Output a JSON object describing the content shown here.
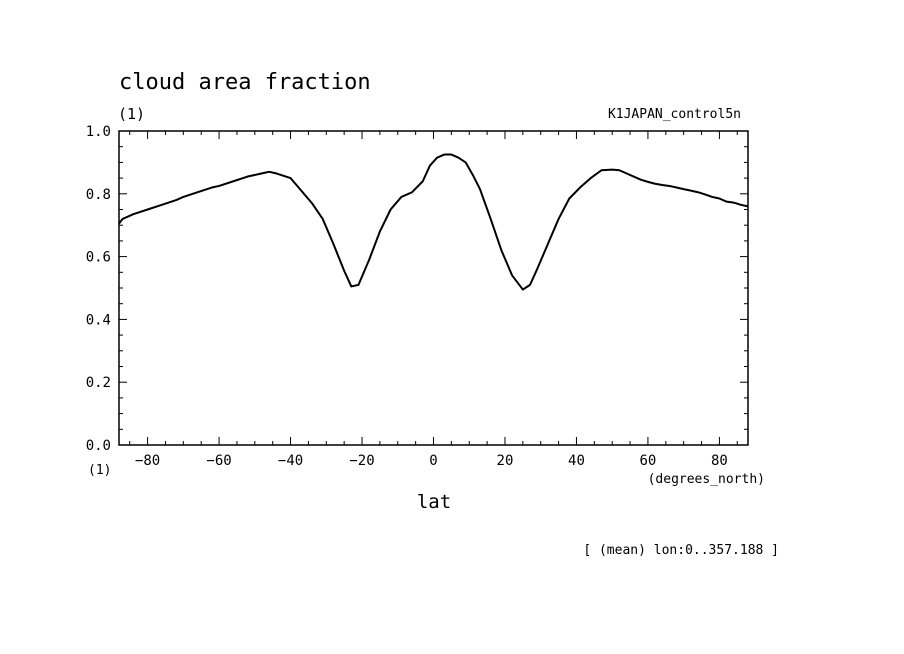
{
  "chart_data": {
    "type": "line",
    "title": "cloud area fraction",
    "y_units": "(1)",
    "x_units_corner": "(1)",
    "dataset_label": "K1JAPAN_control5n",
    "xlabel": "lat",
    "x_units": "(degrees_north)",
    "footnote": "[ (mean) lon:0..357.188 ]",
    "xlim": [
      -88,
      88
    ],
    "ylim": [
      0,
      1
    ],
    "x_ticks": [
      -80,
      -60,
      -40,
      -20,
      0,
      20,
      40,
      60,
      80
    ],
    "x_tick_labels": [
      "−80",
      "−60",
      "−40",
      "−20",
      "0",
      "20",
      "40",
      "60",
      "80"
    ],
    "y_ticks": [
      0,
      0.2,
      0.4,
      0.6,
      0.8,
      1.0
    ],
    "y_tick_labels": [
      "0.0",
      "0.2",
      "0.4",
      "0.6",
      "0.8",
      "1.0"
    ],
    "line_color": "#000000",
    "series": [
      {
        "x": [
          -88,
          -87,
          -84,
          -80,
          -76,
          -72,
          -70,
          -66,
          -62,
          -60,
          -56,
          -52,
          -48,
          -46,
          -44,
          -40,
          -37,
          -34,
          -31,
          -28,
          -25,
          -23,
          -21,
          -18,
          -15,
          -12,
          -9,
          -6,
          -3,
          -1,
          1,
          3,
          5,
          7,
          9,
          11,
          13,
          16,
          19,
          22,
          25,
          27,
          29,
          32,
          35,
          38,
          41,
          44,
          47,
          50,
          52,
          54,
          56,
          58,
          60,
          62,
          64,
          66,
          68,
          70,
          72,
          74,
          76,
          78,
          80,
          82,
          84,
          86,
          88
        ],
        "y": [
          0.705,
          0.72,
          0.735,
          0.75,
          0.765,
          0.78,
          0.79,
          0.805,
          0.82,
          0.825,
          0.84,
          0.855,
          0.865,
          0.87,
          0.865,
          0.85,
          0.81,
          0.77,
          0.72,
          0.64,
          0.555,
          0.505,
          0.51,
          0.59,
          0.68,
          0.75,
          0.79,
          0.805,
          0.84,
          0.89,
          0.915,
          0.925,
          0.925,
          0.915,
          0.9,
          0.86,
          0.815,
          0.72,
          0.62,
          0.54,
          0.495,
          0.51,
          0.56,
          0.64,
          0.72,
          0.785,
          0.82,
          0.85,
          0.875,
          0.877,
          0.875,
          0.865,
          0.855,
          0.845,
          0.838,
          0.832,
          0.828,
          0.825,
          0.82,
          0.815,
          0.81,
          0.805,
          0.798,
          0.79,
          0.785,
          0.775,
          0.772,
          0.765,
          0.76
        ]
      }
    ]
  }
}
